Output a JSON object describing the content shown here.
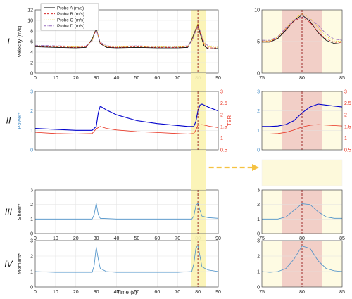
{
  "panels": [
    {
      "numeral": "I",
      "ylabel": "Velocity (m/s)",
      "ylabel_right": "",
      "y2ticks": [],
      "xtick_labels": true
    },
    {
      "numeral": "II",
      "ylabel": "Power*",
      "ylabel_right": "TSR",
      "y2ticks": [
        "0.5",
        "1",
        "1.5",
        "2",
        "2.5",
        "3"
      ],
      "xtick_labels": false
    },
    {
      "numeral": "III",
      "ylabel": "Shear*",
      "ylabel_right": "",
      "y2ticks": [],
      "xtick_labels": true
    },
    {
      "numeral": "IV",
      "ylabel": "Moment*",
      "ylabel_right": "",
      "y2ticks": [],
      "xtick_labels": true
    }
  ],
  "xlabel": "Time (s)",
  "legend": [
    "Probe A (m/s)",
    "Probe B (m/s)",
    "Probe C (m/s)",
    "Probe D (m/s)"
  ],
  "colors": {
    "probeA": "#000000",
    "probeB": "#d62728",
    "probeC": "#e8c61b",
    "probeD": "#9467bd",
    "power": "#0000cc",
    "tsr": "#e8301e",
    "load": "#4a90c8",
    "yellow_band": "#fbf3b0",
    "red_band": "#f0c7c2",
    "guide": "#8b0000",
    "arrow": "#f5c242"
  },
  "chart_data": [
    {
      "type": "line",
      "panel": "I",
      "xlim": [
        0,
        90
      ],
      "ylim": [
        0,
        12
      ],
      "xticks": [
        0,
        10,
        20,
        30,
        40,
        50,
        60,
        70,
        80,
        90
      ],
      "yticks": [
        0,
        2,
        4,
        6,
        8,
        10,
        12
      ],
      "ylabel": "Velocity (m/s)",
      "xlabel": "",
      "series": [
        {
          "name": "Probe A (m/s)",
          "x": [
            0,
            10,
            20,
            25,
            28,
            30,
            32,
            35,
            40,
            50,
            60,
            70,
            75,
            77,
            79,
            80,
            81,
            83,
            85,
            90
          ],
          "y": [
            5,
            4.9,
            4.8,
            4.9,
            6.5,
            8.5,
            5.6,
            4.9,
            4.8,
            4.9,
            4.8,
            4.8,
            4.9,
            6.4,
            8.4,
            9.2,
            7.6,
            5.2,
            4.6,
            4.7
          ]
        },
        {
          "name": "Probe B (m/s)",
          "x": [
            0,
            10,
            20,
            25,
            28,
            30,
            32,
            35,
            40,
            50,
            60,
            70,
            75,
            77,
            79,
            80,
            81,
            83,
            85,
            90
          ],
          "y": [
            5.1,
            5,
            4.9,
            5,
            6.3,
            8.3,
            5.7,
            5,
            4.9,
            5,
            4.9,
            4.9,
            5,
            6.2,
            8.1,
            9,
            7.8,
            5.5,
            4.8,
            4.8
          ]
        },
        {
          "name": "Probe C (m/s)",
          "x": [
            0,
            10,
            20,
            25,
            28,
            30,
            32,
            35,
            40,
            50,
            60,
            70,
            75,
            77,
            79,
            80,
            81,
            83,
            85,
            90
          ],
          "y": [
            5.2,
            5.1,
            5,
            5.1,
            6.2,
            8.6,
            5.8,
            5.1,
            5,
            5.1,
            5,
            5,
            5.1,
            6.1,
            8.3,
            9.4,
            8.2,
            5.7,
            5,
            4.9
          ]
        },
        {
          "name": "Probe D (m/s)",
          "x": [
            0,
            10,
            20,
            25,
            28,
            30,
            32,
            35,
            40,
            50,
            60,
            70,
            75,
            77,
            79,
            80,
            81,
            83,
            85,
            90
          ],
          "y": [
            5.3,
            5.2,
            5.1,
            5.2,
            6.1,
            8.2,
            5.9,
            5.2,
            5.1,
            5.2,
            5.1,
            5.1,
            5.2,
            6,
            8,
            8.9,
            8.1,
            5.9,
            5.2,
            5.1
          ]
        }
      ],
      "highlight_x": [
        76.5,
        84
      ],
      "vline_x": 80
    },
    {
      "type": "line",
      "panel": "II",
      "xlim": [
        0,
        90
      ],
      "ylim": [
        0,
        3
      ],
      "y2lim": [
        0.5,
        3
      ],
      "xticks": [
        0,
        10,
        20,
        30,
        40,
        50,
        60,
        70,
        80,
        90
      ],
      "yticks": [
        0,
        1,
        2,
        3
      ],
      "ylabel": "Power*",
      "y2label": "TSR",
      "series": [
        {
          "name": "Power*",
          "axis": "left",
          "x": [
            0,
            10,
            20,
            28,
            30,
            31,
            32,
            35,
            40,
            50,
            60,
            70,
            75,
            78,
            79,
            80,
            81,
            82,
            85,
            90
          ],
          "y": [
            1.1,
            1.05,
            1.0,
            1.0,
            1.2,
            1.9,
            2.25,
            2.05,
            1.8,
            1.5,
            1.35,
            1.25,
            1.2,
            1.2,
            1.45,
            2.0,
            2.3,
            2.35,
            2.2,
            2.0
          ]
        },
        {
          "name": "TSR",
          "axis": "right",
          "x": [
            0,
            10,
            20,
            28,
            30,
            32,
            35,
            40,
            50,
            60,
            70,
            75,
            78,
            79,
            80,
            82,
            85,
            90
          ],
          "y": [
            1.25,
            1.2,
            1.18,
            1.2,
            1.4,
            1.5,
            1.42,
            1.35,
            1.28,
            1.24,
            1.2,
            1.18,
            1.2,
            1.35,
            1.55,
            1.58,
            1.52,
            1.45
          ]
        }
      ],
      "highlight_x": [
        76.5,
        84
      ],
      "vline_x": 80
    },
    {
      "type": "line",
      "panel": "III",
      "xlim": [
        0,
        90
      ],
      "ylim": [
        0,
        3
      ],
      "xticks": [
        0,
        10,
        20,
        30,
        40,
        50,
        60,
        70,
        80,
        90
      ],
      "yticks": [
        0,
        1,
        2,
        3
      ],
      "ylabel": "Shear*",
      "series": [
        {
          "name": "Shear*",
          "x": [
            0,
            10,
            20,
            28,
            29,
            30,
            31,
            32,
            40,
            50,
            60,
            70,
            77,
            78,
            79,
            80,
            81,
            82,
            85,
            90
          ],
          "y": [
            1.0,
            1.0,
            1.0,
            1.0,
            1.3,
            2.1,
            1.3,
            1.05,
            1.0,
            1.0,
            1.0,
            1.0,
            1.0,
            1.2,
            1.9,
            2.1,
            1.6,
            1.2,
            1.1,
            1.05
          ]
        }
      ],
      "highlight_x": [
        76.5,
        84
      ],
      "vline_x": 80
    },
    {
      "type": "line",
      "panel": "IV",
      "xlim": [
        0,
        90
      ],
      "ylim": [
        0,
        3
      ],
      "xticks": [
        0,
        10,
        20,
        30,
        40,
        50,
        60,
        70,
        80,
        90
      ],
      "yticks": [
        0,
        1,
        2,
        3
      ],
      "ylabel": "Moment*",
      "xlabel": "Time (s)",
      "series": [
        {
          "name": "Moment*",
          "x": [
            0,
            10,
            20,
            28,
            29,
            30,
            31,
            32,
            35,
            40,
            50,
            60,
            70,
            77,
            78,
            79,
            80,
            81,
            82,
            85,
            90
          ],
          "y": [
            1.0,
            0.95,
            0.95,
            0.95,
            1.4,
            2.6,
            1.8,
            1.2,
            1.0,
            0.95,
            0.95,
            0.95,
            0.95,
            1.0,
            1.5,
            2.5,
            2.7,
            2.0,
            1.3,
            1.1,
            1.0
          ]
        }
      ],
      "highlight_x": [
        76.5,
        84
      ],
      "vline_x": 80
    },
    {
      "type": "line",
      "panel": "I-zoom",
      "xlim": [
        75,
        85
      ],
      "ylim": [
        0,
        10
      ],
      "xticks": [
        75,
        80,
        85
      ],
      "yticks": [
        0,
        5,
        10
      ],
      "series": [
        {
          "name": "Probe A (m/s)",
          "x": [
            75,
            76,
            77,
            78,
            79,
            80,
            81,
            82,
            83,
            84,
            85
          ],
          "y": [
            4.9,
            4.9,
            5.5,
            6.8,
            8.3,
            9.2,
            8.2,
            6.4,
            5.2,
            4.7,
            4.6
          ]
        },
        {
          "name": "Probe B (m/s)",
          "x": [
            75,
            76,
            77,
            78,
            79,
            80,
            81,
            82,
            83,
            84,
            85
          ],
          "y": [
            5,
            5,
            5.6,
            7,
            8.2,
            8.9,
            8.0,
            6.5,
            5.4,
            4.9,
            4.8
          ]
        },
        {
          "name": "Probe C (m/s)",
          "x": [
            75,
            76,
            77,
            78,
            79,
            80,
            81,
            82,
            83,
            84,
            85
          ],
          "y": [
            5.1,
            5.1,
            5.7,
            7.1,
            8.5,
            9.4,
            8.7,
            7.2,
            5.8,
            5.1,
            5
          ]
        },
        {
          "name": "Probe D (m/s)",
          "x": [
            75,
            76,
            77,
            78,
            79,
            80,
            81,
            82,
            83,
            84,
            85
          ],
          "y": [
            5.2,
            5.2,
            5.8,
            7.2,
            8.4,
            8.9,
            8.5,
            7.6,
            6.2,
            5.4,
            5.2
          ]
        }
      ],
      "highlight_x": [
        77.5,
        82.5
      ],
      "vline_x": 80
    },
    {
      "type": "line",
      "panel": "II-zoom",
      "xlim": [
        75,
        85
      ],
      "ylim": [
        0,
        3
      ],
      "y2lim": [
        0.5,
        3
      ],
      "xticks": [
        75,
        80,
        85
      ],
      "yticks": [
        0,
        1,
        2,
        3
      ],
      "series": [
        {
          "name": "Power*",
          "axis": "left",
          "x": [
            75,
            76,
            77,
            78,
            79,
            80,
            81,
            82,
            83,
            84,
            85
          ],
          "y": [
            1.2,
            1.2,
            1.22,
            1.3,
            1.5,
            1.9,
            2.2,
            2.35,
            2.3,
            2.25,
            2.2
          ]
        },
        {
          "name": "TSR",
          "axis": "right",
          "x": [
            75,
            76,
            77,
            78,
            79,
            80,
            81,
            82,
            83,
            84,
            85
          ],
          "y": [
            1.18,
            1.18,
            1.2,
            1.25,
            1.35,
            1.48,
            1.55,
            1.58,
            1.56,
            1.54,
            1.52
          ]
        }
      ],
      "highlight_x": [
        77.5,
        82.5
      ],
      "vline_x": 80
    },
    {
      "type": "line",
      "panel": "III-zoom",
      "xlim": [
        75,
        85
      ],
      "ylim": [
        0,
        3
      ],
      "xticks": [
        75,
        80,
        85
      ],
      "yticks": [
        0,
        1,
        2,
        3
      ],
      "series": [
        {
          "name": "Shear*",
          "x": [
            75,
            76,
            77,
            78,
            79,
            80,
            81,
            82,
            83,
            84,
            85
          ],
          "y": [
            1.0,
            1.0,
            1.0,
            1.15,
            1.6,
            2.05,
            2.0,
            1.5,
            1.15,
            1.05,
            1.05
          ]
        }
      ],
      "highlight_x": [
        77.5,
        82.5
      ],
      "vline_x": 80
    },
    {
      "type": "line",
      "panel": "IV-zoom",
      "xlim": [
        75,
        85
      ],
      "ylim": [
        0,
        3
      ],
      "xticks": [
        75,
        80,
        85
      ],
      "yticks": [
        0,
        1,
        2,
        3
      ],
      "series": [
        {
          "name": "Moment*",
          "x": [
            75,
            76,
            77,
            78,
            79,
            80,
            81,
            82,
            83,
            84,
            85
          ],
          "y": [
            1.0,
            0.95,
            1.0,
            1.2,
            1.8,
            2.65,
            2.5,
            1.7,
            1.2,
            1.05,
            1.0
          ]
        }
      ],
      "highlight_x": [
        77.5,
        82.5
      ],
      "vline_x": 80
    }
  ]
}
